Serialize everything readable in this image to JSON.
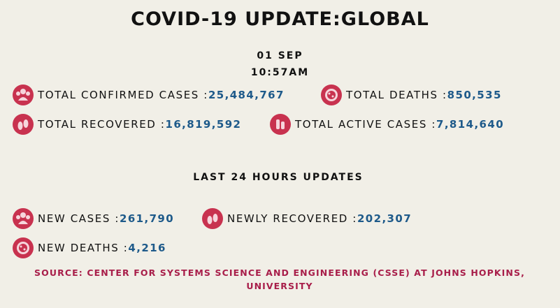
{
  "header": {
    "title": "COVID-19 UPDATE:GLOBAL",
    "date": "01 SEP",
    "time": "10:57AM"
  },
  "totals": {
    "confirmed": {
      "label": "TOTAL CONFIRMED CASES : ",
      "value": "25,484,767",
      "icon": "people-group-icon"
    },
    "deaths": {
      "label": "TOTAL DEATHS : ",
      "value": "850,535",
      "icon": "virus-icon"
    },
    "recovered": {
      "label": "TOTAL RECOVERED : ",
      "value": "16,819,592",
      "icon": "footprints-icon"
    },
    "active": {
      "label": "TOTAL ACTIVE CASES : ",
      "value": "7,814,640",
      "icon": "test-tubes-icon"
    }
  },
  "last24": {
    "heading": "LAST 24 HOURS UPDATES",
    "new_cases": {
      "label": "NEW CASES : ",
      "value": "261,790",
      "icon": "people-group-icon"
    },
    "newly_recovered": {
      "label": "NEWLY RECOVERED : ",
      "value": "202,307",
      "icon": "footprints-icon"
    },
    "new_deaths": {
      "label": "NEW DEATHS : ",
      "value": "4,216",
      "icon": "virus-icon"
    }
  },
  "source": {
    "line1": "SOURCE: CENTER FOR SYSTEMS SCIENCE AND ENGINEERING (CSSE) AT JOHNS HOPKINS,",
    "line2": "UNIVERSITY"
  },
  "colors": {
    "background": "#f1efe7",
    "value": "#1e5a8a",
    "source": "#a81e4a",
    "icon": "#c8324f"
  }
}
